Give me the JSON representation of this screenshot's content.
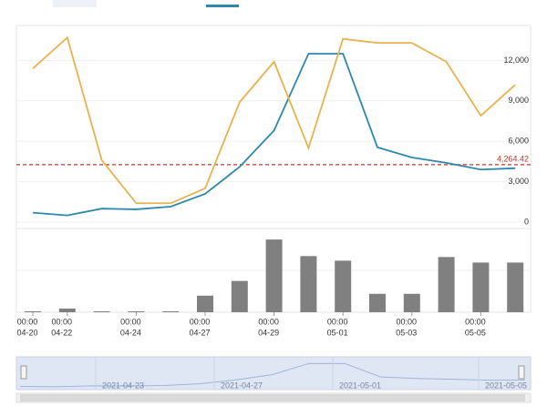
{
  "chart_data": {
    "type": "line",
    "categories": [
      {
        "time": "00:00",
        "date": "04-20"
      },
      {
        "time": "00:00",
        "date": "04-22"
      },
      null,
      {
        "time": "00:00",
        "date": "04-24"
      },
      null,
      {
        "time": "00:00",
        "date": "04-27"
      },
      null,
      {
        "time": "00:00",
        "date": "04-29"
      },
      null,
      {
        "time": "00:00",
        "date": "05-01"
      },
      null,
      {
        "time": "00:00",
        "date": "05-03"
      },
      null,
      {
        "time": "00:00",
        "date": "05-05"
      },
      null
    ],
    "series": [
      {
        "color": "#2e87ad",
        "values": [
          700,
          500,
          1000,
          950,
          1150,
          2100,
          4100,
          6800,
          12500,
          12500,
          5550,
          4800,
          4400,
          3900,
          4000
        ]
      },
      {
        "color": "#e8b24e",
        "values": [
          11400,
          13700,
          4600,
          1400,
          1400,
          2500,
          8900,
          11900,
          5500,
          13600,
          13300,
          13300,
          11900,
          7900,
          10200
        ]
      }
    ],
    "ylim": [
      0,
      15000
    ],
    "yticks": [
      0,
      {
        "value": 3000,
        "label": "3,000"
      },
      {
        "value": 6000,
        "label": "6,000"
      },
      {
        "value": 9000,
        "label": "9,000"
      },
      {
        "value": 12000,
        "label": "12,000"
      }
    ],
    "grid": true,
    "reference_line": {
      "value": 4264.42,
      "label": "4,264.42",
      "color": "#c0392b"
    },
    "bars": {
      "color": "#808080",
      "values": [
        1,
        4,
        1,
        1,
        1,
        18,
        34,
        79,
        61,
        56,
        20,
        20,
        60,
        54,
        54
      ],
      "ylim": [
        0,
        90
      ]
    },
    "navigator": {
      "labels": [
        "2021-04-23",
        "2021-04-27",
        "2021-05-01",
        "2021-05-05"
      ]
    }
  }
}
